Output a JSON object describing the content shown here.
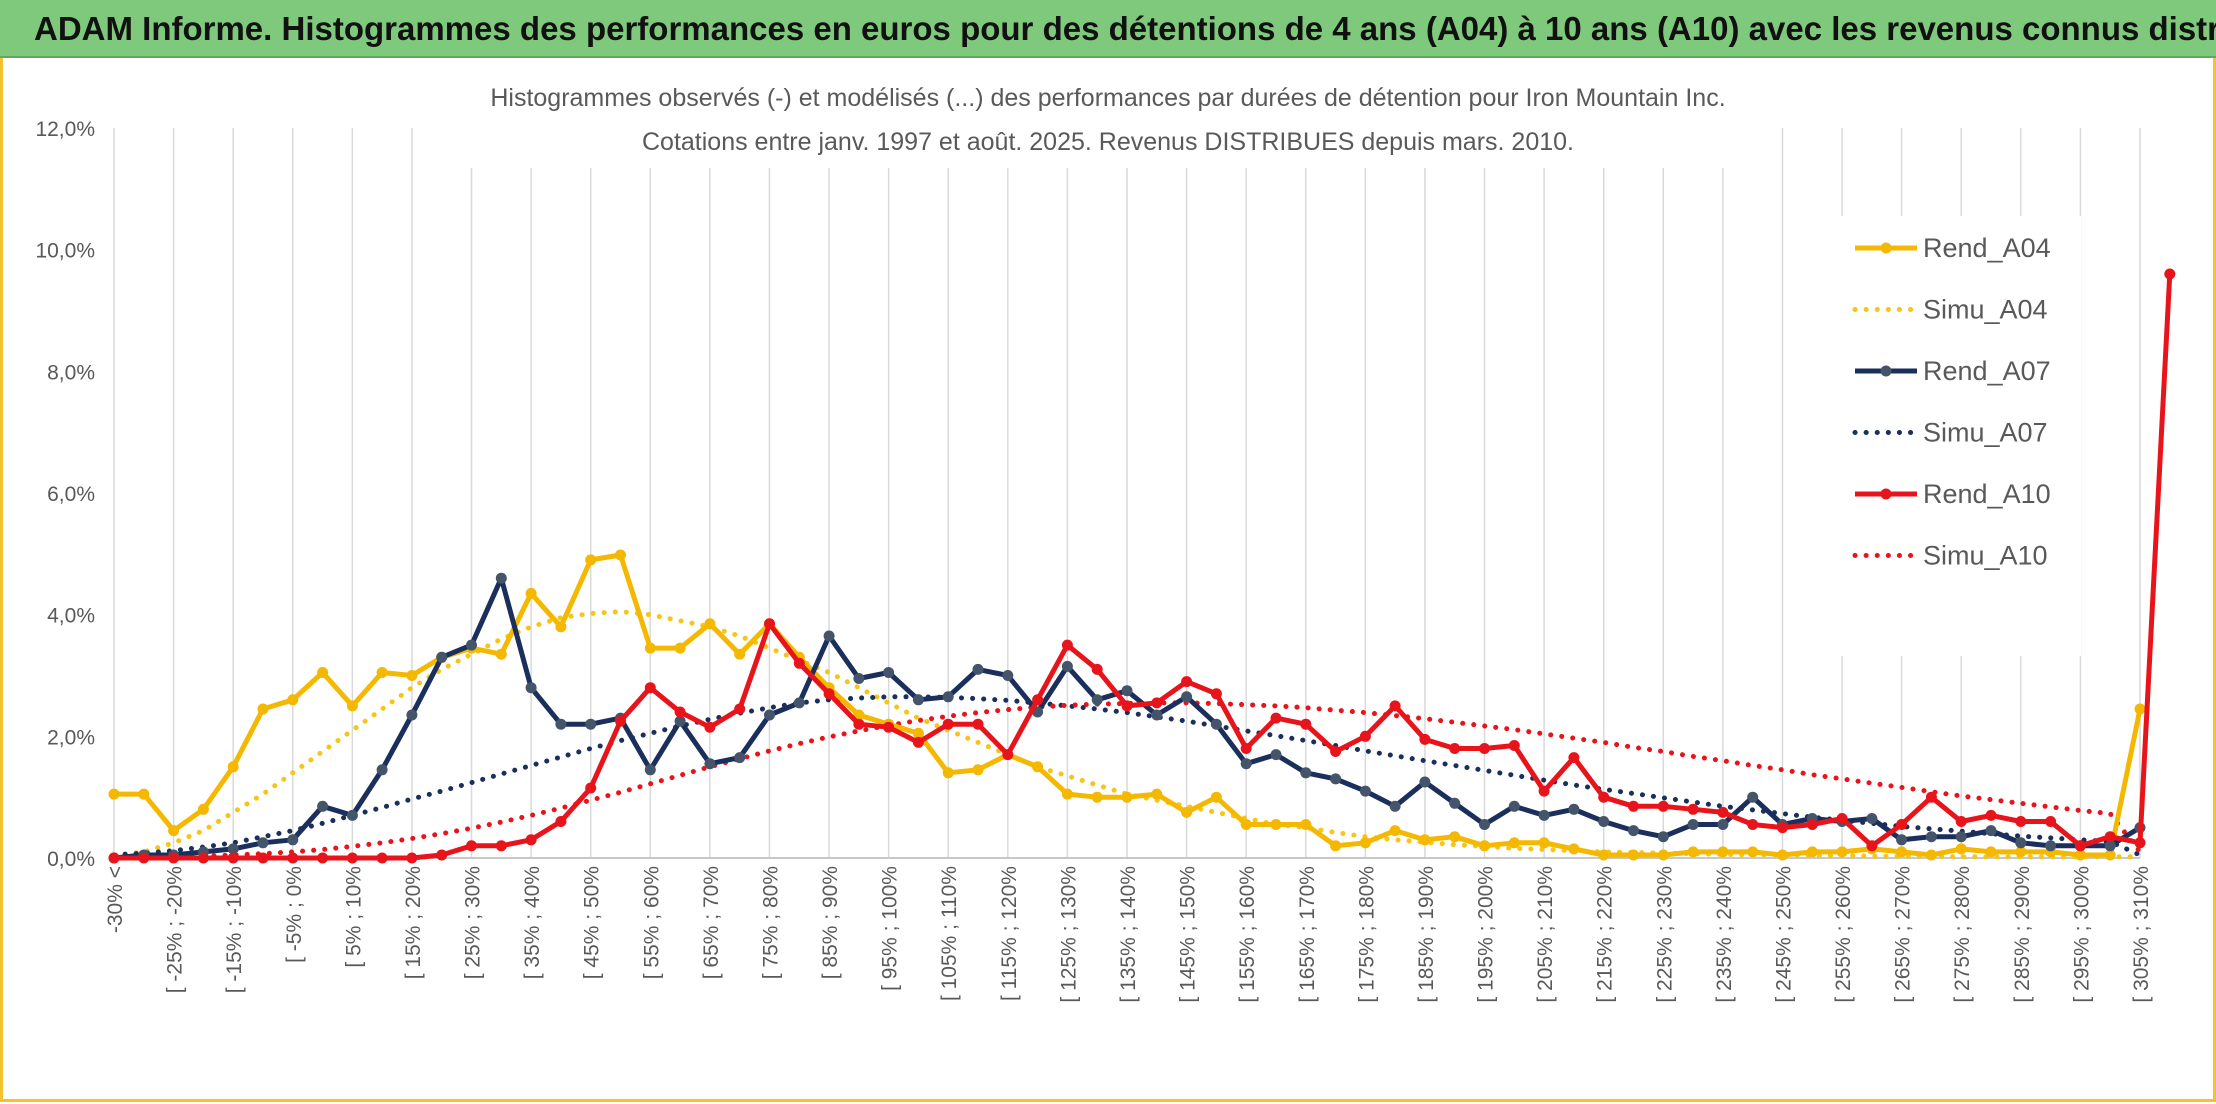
{
  "banner": {
    "title": "ADAM Informe. Histogrammes des performances en euros pour des détentions de 4 ans (A04) à 10 ans (A10) avec les revenus connus distribués"
  },
  "chart_data": {
    "type": "line",
    "title": "Histogrammes observés (-) et modélisés (...) des performances par durées de détention pour Iron Mountain Inc.",
    "subtitle": "Cotations entre janv. 1997 et août. 2025. Revenus DISTRIBUES depuis mars. 2010.",
    "xlabel": "",
    "ylabel": "",
    "ylim": [
      0,
      12
    ],
    "y_ticks": [
      "0,0%",
      "2,0%",
      "4,0%",
      "6,0%",
      "8,0%",
      "10,0%",
      "12,0%"
    ],
    "grid": "vertical gridlines",
    "legend_position": "top-right",
    "x_tick_labels": [
      "-30% <",
      "[ -25% ; -20%",
      "[ -15% ; -10%",
      "[ -5% ; 0%",
      "[ 5% ; 10%",
      "[ 15% ; 20%",
      "[ 25% ; 30%",
      "[ 35% ; 40%",
      "[ 45% ; 50%",
      "[ 55% ; 60%",
      "[ 65% ; 70%",
      "[ 75% ; 80%",
      "[ 85% ; 90%",
      "[ 95% ; 100%",
      "[ 105% ; 110%",
      "[ 115% ; 120%",
      "[ 125% ; 130%",
      "[ 135% ; 140%",
      "[ 145% ; 150%",
      "[ 155% ; 160%",
      "[ 165% ; 170%",
      "[ 175% ; 180%",
      "[ 185% ; 190%",
      "[ 195% ; 200%",
      "[ 205% ; 210%",
      "[ 215% ; 220%",
      "[ 225% ; 230%",
      "[ 235% ; 240%",
      "[ 245% ; 250%",
      "[ 255% ; 260%",
      "[ 265% ; 270%",
      "[ 275% ; 280%",
      "[ 285% ; 290%",
      "[ 295% ; 300%",
      "[ 305% ; 310%"
    ],
    "series": [
      {
        "name": "Rend_A04",
        "color": "#f5b800",
        "style": "solid",
        "markers": true,
        "values": [
          1.05,
          1.05,
          0.45,
          0.8,
          1.5,
          2.45,
          2.6,
          3.05,
          2.5,
          3.05,
          3.0,
          3.3,
          3.45,
          3.35,
          4.35,
          3.8,
          4.9,
          4.98,
          3.45,
          3.45,
          3.85,
          3.35,
          3.85,
          3.3,
          2.8,
          2.35,
          2.2,
          2.05,
          1.4,
          1.45,
          1.7,
          1.5,
          1.05,
          1.0,
          1.0,
          1.05,
          0.75,
          1.0,
          0.55,
          0.55,
          0.55,
          0.2,
          0.25,
          0.45,
          0.3,
          0.35,
          0.2,
          0.25,
          0.25,
          0.15,
          0.05,
          0.05,
          0.05,
          0.1,
          0.1,
          0.1,
          0.05,
          0.1,
          0.1,
          0.15,
          0.1,
          0.05,
          0.15,
          0.1,
          0.1,
          0.1,
          0.05,
          0.05,
          2.45
        ]
      },
      {
        "name": "Simu_A04",
        "color": "#f5c518",
        "style": "dotted",
        "markers": false,
        "values": [
          0.05,
          0.1,
          0.25,
          0.45,
          0.75,
          1.05,
          1.4,
          1.75,
          2.1,
          2.45,
          2.8,
          3.1,
          3.35,
          3.6,
          3.8,
          3.95,
          4.02,
          4.05,
          4.0,
          3.9,
          3.8,
          3.65,
          3.45,
          3.25,
          3.05,
          2.8,
          2.55,
          2.3,
          2.1,
          1.9,
          1.7,
          1.5,
          1.35,
          1.2,
          1.05,
          0.95,
          0.85,
          0.75,
          0.65,
          0.55,
          0.5,
          0.42,
          0.35,
          0.3,
          0.26,
          0.22,
          0.19,
          0.16,
          0.14,
          0.12,
          0.1,
          0.09,
          0.08,
          0.07,
          0.06,
          0.05,
          0.05,
          0.04,
          0.04,
          0.03,
          0.03,
          0.03,
          0.02,
          0.02,
          0.02,
          0.02,
          0.02,
          0.02,
          0.02
        ]
      },
      {
        "name": "Rend_A07",
        "color": "#1a2f5c",
        "style": "solid",
        "markers": true,
        "values": [
          0.0,
          0.05,
          0.05,
          0.1,
          0.15,
          0.25,
          0.3,
          0.85,
          0.7,
          1.45,
          2.35,
          3.3,
          3.5,
          4.6,
          2.8,
          2.2,
          2.2,
          2.3,
          1.45,
          2.25,
          1.55,
          1.65,
          2.35,
          2.55,
          3.65,
          2.95,
          3.05,
          2.6,
          2.65,
          3.1,
          3.0,
          2.4,
          3.15,
          2.6,
          2.75,
          2.35,
          2.65,
          2.2,
          1.55,
          1.7,
          1.4,
          1.3,
          1.1,
          0.85,
          1.25,
          0.9,
          0.55,
          0.85,
          0.7,
          0.8,
          0.6,
          0.45,
          0.35,
          0.55,
          0.55,
          1.0,
          0.55,
          0.65,
          0.6,
          0.65,
          0.3,
          0.35,
          0.35,
          0.45,
          0.25,
          0.2,
          0.2,
          0.2,
          0.5
        ]
      },
      {
        "name": "Simu_A07",
        "color": "#1a2f5c",
        "style": "dotted",
        "markers": false,
        "values": [
          0.05,
          0.08,
          0.12,
          0.18,
          0.25,
          0.35,
          0.45,
          0.57,
          0.7,
          0.83,
          0.97,
          1.1,
          1.24,
          1.38,
          1.52,
          1.66,
          1.8,
          1.93,
          2.05,
          2.17,
          2.28,
          2.38,
          2.47,
          2.55,
          2.6,
          2.63,
          2.65,
          2.65,
          2.64,
          2.62,
          2.59,
          2.55,
          2.5,
          2.45,
          2.39,
          2.32,
          2.25,
          2.17,
          2.09,
          2.01,
          1.93,
          1.85,
          1.76,
          1.68,
          1.6,
          1.52,
          1.44,
          1.36,
          1.28,
          1.2,
          1.13,
          1.06,
          0.99,
          0.92,
          0.85,
          0.79,
          0.73,
          0.67,
          0.62,
          0.57,
          0.52,
          0.48,
          0.44,
          0.4,
          0.36,
          0.33,
          0.3,
          0.27,
          0.05
        ]
      },
      {
        "name": "Rend_A10",
        "color": "#e8141b",
        "style": "solid",
        "markers": true,
        "values": [
          0.0,
          0.0,
          0.0,
          0.0,
          0.0,
          0.0,
          0.0,
          0.0,
          0.0,
          0.0,
          0.0,
          0.05,
          0.2,
          0.2,
          0.3,
          0.6,
          1.15,
          2.25,
          2.8,
          2.4,
          2.15,
          2.45,
          3.85,
          3.2,
          2.7,
          2.2,
          2.15,
          1.9,
          2.2,
          2.2,
          1.7,
          2.6,
          3.5,
          3.1,
          2.5,
          2.55,
          2.9,
          2.7,
          1.8,
          2.3,
          2.2,
          1.75,
          2.0,
          2.5,
          1.95,
          1.8,
          1.8,
          1.85,
          1.1,
          1.65,
          1.0,
          0.85,
          0.85,
          0.8,
          0.75,
          0.55,
          0.5,
          0.55,
          0.65,
          0.2,
          0.55,
          1.0,
          0.6,
          0.7,
          0.6,
          0.6,
          0.2,
          0.35,
          0.25,
          9.6
        ]
      },
      {
        "name": "Simu_A10",
        "color": "#e8141b",
        "style": "dotted",
        "markers": false,
        "values": [
          0.0,
          0.01,
          0.02,
          0.03,
          0.05,
          0.07,
          0.1,
          0.14,
          0.19,
          0.25,
          0.32,
          0.4,
          0.49,
          0.59,
          0.7,
          0.82,
          0.95,
          1.08,
          1.22,
          1.36,
          1.5,
          1.63,
          1.76,
          1.88,
          1.99,
          2.09,
          2.18,
          2.26,
          2.33,
          2.39,
          2.44,
          2.48,
          2.51,
          2.53,
          2.54,
          2.55,
          2.55,
          2.54,
          2.52,
          2.5,
          2.47,
          2.43,
          2.39,
          2.34,
          2.29,
          2.23,
          2.17,
          2.11,
          2.04,
          1.97,
          1.9,
          1.82,
          1.75,
          1.67,
          1.6,
          1.52,
          1.45,
          1.37,
          1.3,
          1.23,
          1.16,
          1.09,
          1.02,
          0.96,
          0.9,
          0.84,
          0.78,
          0.73,
          0.1
        ]
      }
    ]
  }
}
